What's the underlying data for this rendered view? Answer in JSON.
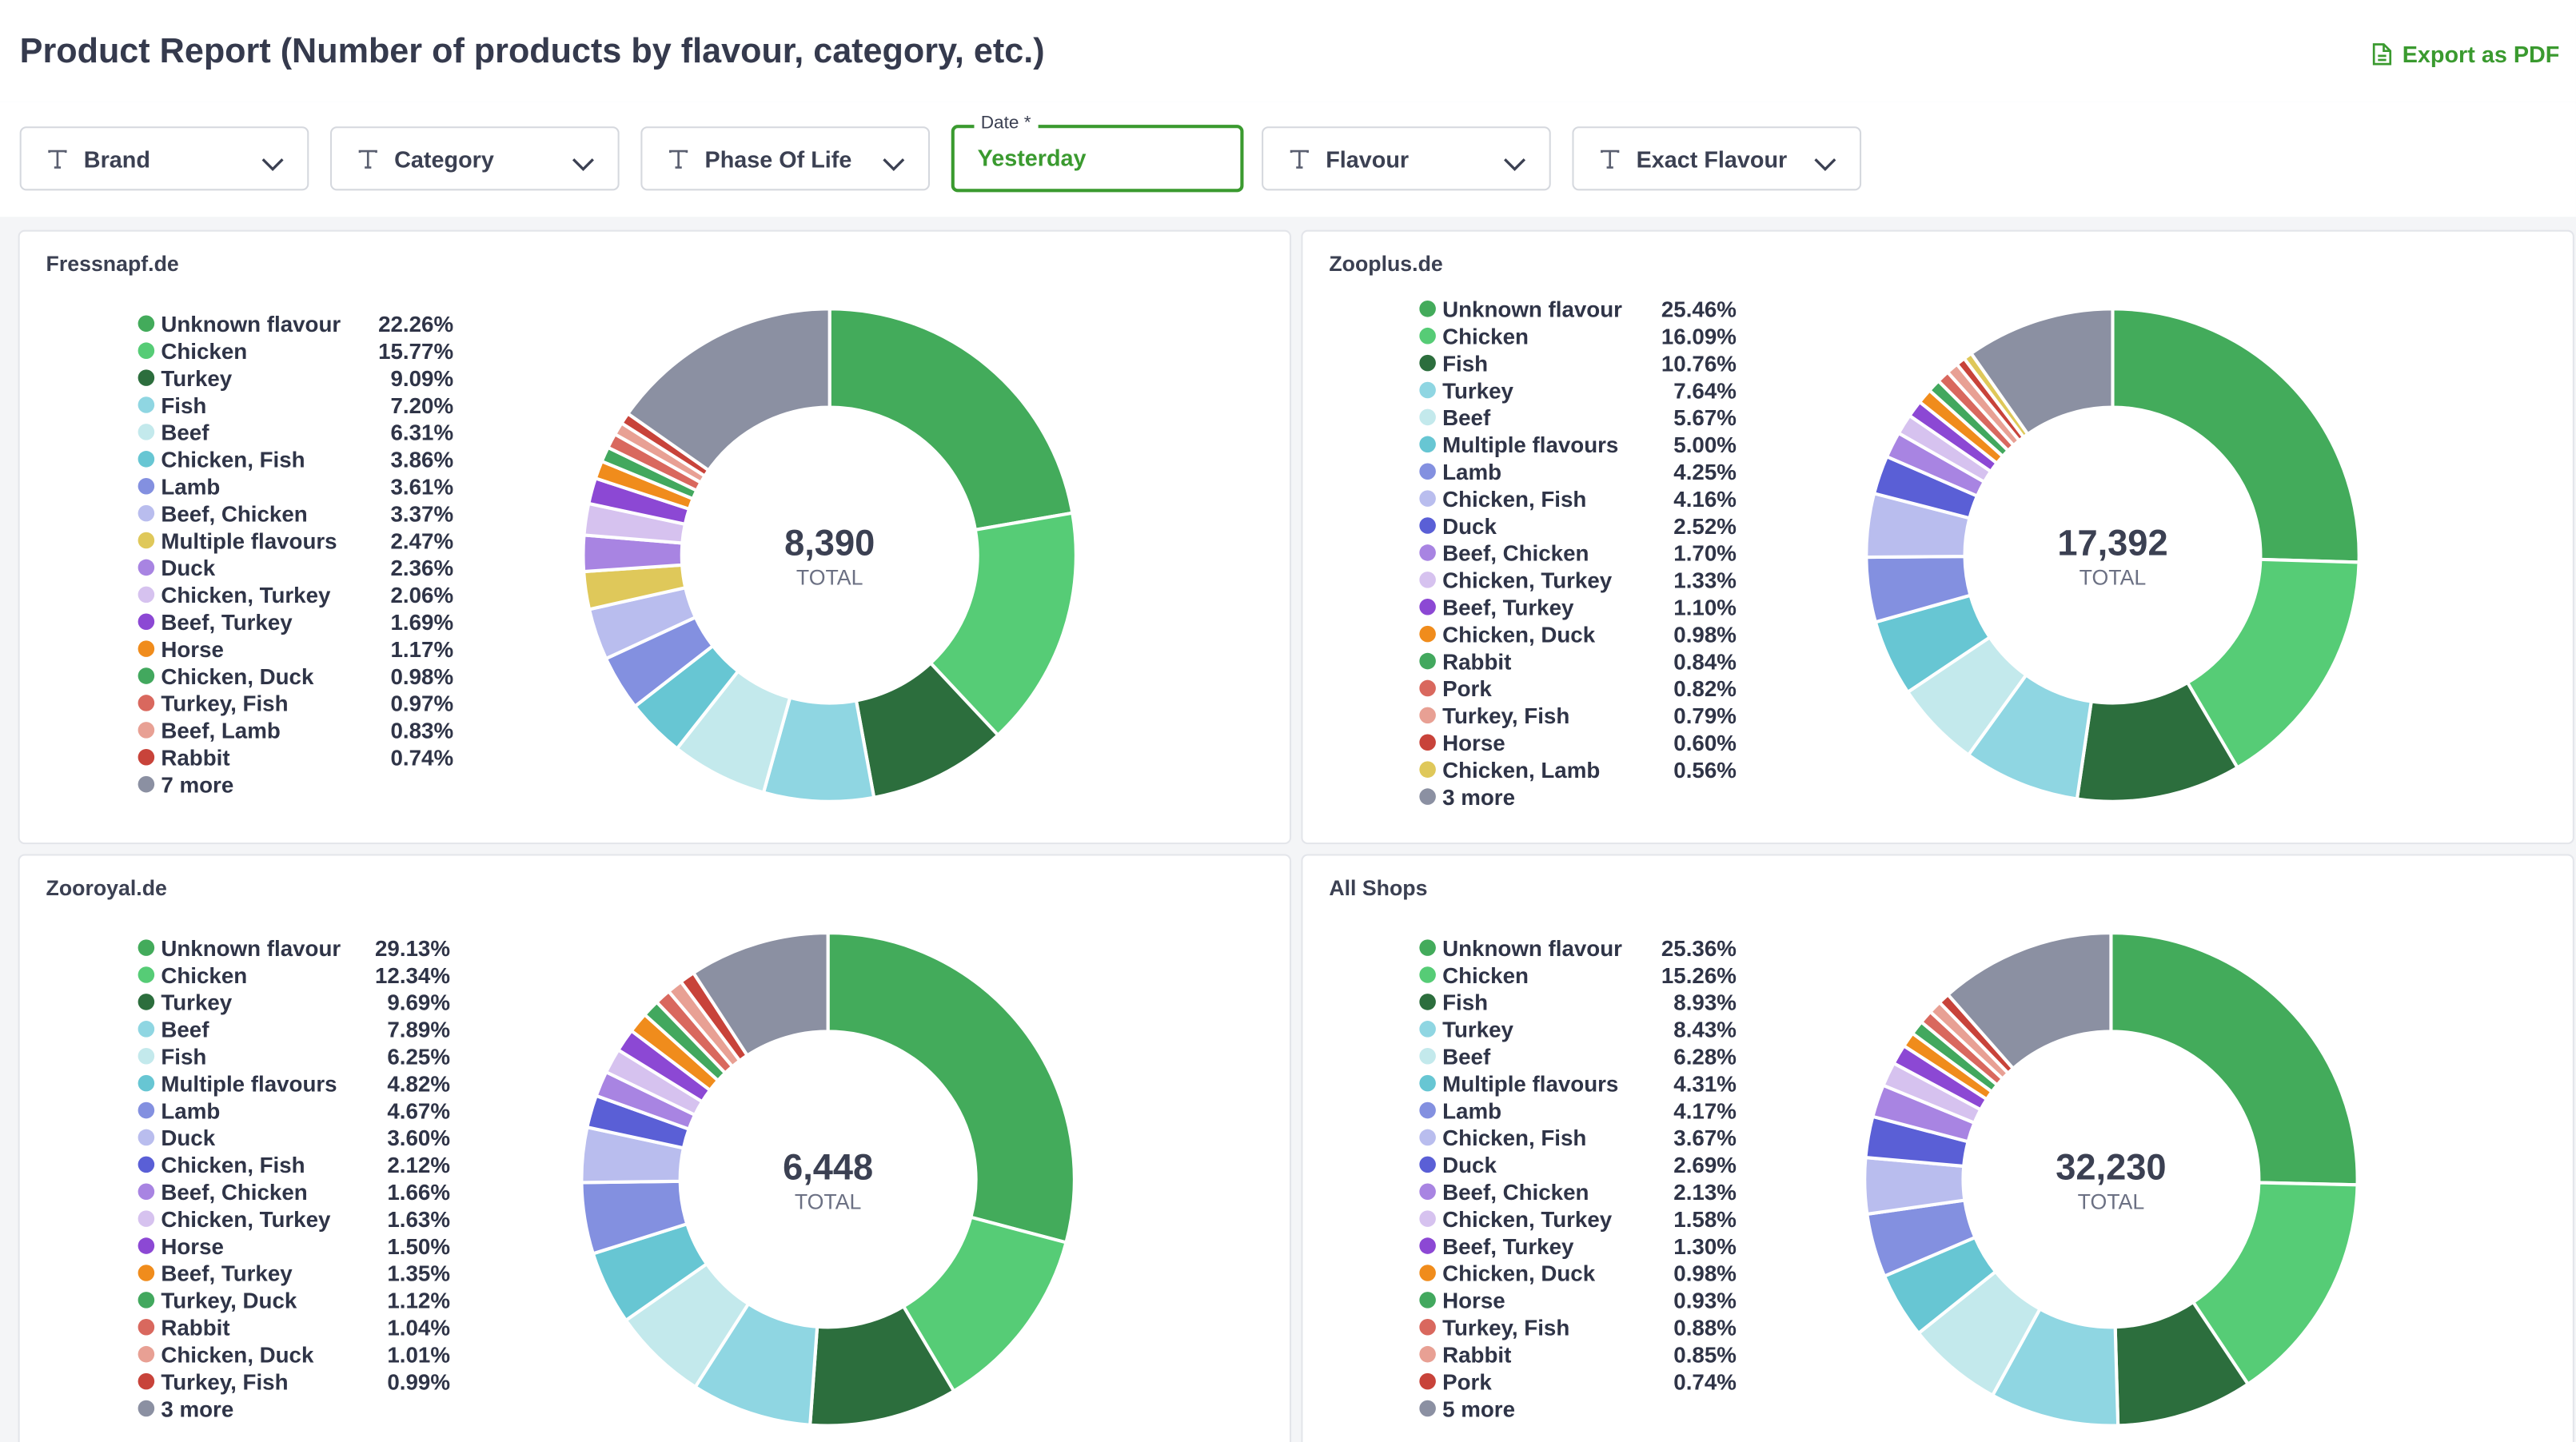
{
  "header": {
    "title": "Product Report (Number of products by flavour, category, etc.)",
    "export": "Export as PDF"
  },
  "filters": [
    {
      "label": "Brand"
    },
    {
      "label": "Category"
    },
    {
      "label": "Phase Of Life"
    },
    {
      "label": "Date *",
      "value": "Yesterday"
    },
    {
      "label": "Flavour"
    },
    {
      "label": "Exact Flavour"
    }
  ],
  "chart_data": [
    {
      "type": "pie",
      "title": "Fressnapf.de",
      "categories": [
        "Unknown flavour",
        "Chicken",
        "Turkey",
        "Fish",
        "Beef",
        "Chicken, Fish",
        "Lamb",
        "Beef, Chicken",
        "Multiple flavours",
        "Duck",
        "Chicken, Turkey",
        "Beef, Turkey",
        "Horse",
        "Chicken, Duck",
        "Turkey, Fish",
        "Beef, Lamb",
        "Rabbit",
        "7 more"
      ],
      "values": [
        22.26,
        15.77,
        9.09,
        7.2,
        6.31,
        3.86,
        3.61,
        3.37,
        2.47,
        2.36,
        2.06,
        1.69,
        1.17,
        0.98,
        0.97,
        0.83,
        0.74,
        15.26
      ],
      "value_labels": [
        "22.26%",
        "15.77%",
        "9.09%",
        "7.20%",
        "6.31%",
        "3.86%",
        "3.61%",
        "3.37%",
        "2.47%",
        "2.36%",
        "2.06%",
        "1.69%",
        "1.17%",
        "0.98%",
        "0.97%",
        "0.83%",
        "0.74%",
        null
      ],
      "colors": [
        "#43ab5b",
        "#56cc76",
        "#2c6e3d",
        "#8fd6e2",
        "#c3e9ec",
        "#67c6d3",
        "#8390e0",
        "#b9bdee",
        "#dfc85a",
        "#a884e2",
        "#d6c2ef",
        "#8c48d4",
        "#f08c1c",
        "#42a85e",
        "#d9685e",
        "#e8a094",
        "#c8433a",
        "#8b90a2"
      ],
      "total": {
        "value": 8390,
        "label": "8,390"
      },
      "total_label": "TOTAL"
    },
    {
      "type": "pie",
      "title": "Zooplus.de",
      "categories": [
        "Unknown flavour",
        "Chicken",
        "Fish",
        "Turkey",
        "Beef",
        "Multiple flavours",
        "Lamb",
        "Chicken, Fish",
        "Duck",
        "Beef, Chicken",
        "Chicken, Turkey",
        "Beef, Turkey",
        "Chicken, Duck",
        "Rabbit",
        "Pork",
        "Turkey, Fish",
        "Horse",
        "Chicken, Lamb",
        "3 more"
      ],
      "values": [
        25.46,
        16.09,
        10.76,
        7.64,
        5.67,
        5.0,
        4.25,
        4.16,
        2.52,
        1.7,
        1.33,
        1.1,
        0.98,
        0.84,
        0.82,
        0.79,
        0.6,
        0.56,
        9.73
      ],
      "value_labels": [
        "25.46%",
        "16.09%",
        "10.76%",
        "7.64%",
        "5.67%",
        "5.00%",
        "4.25%",
        "4.16%",
        "2.52%",
        "1.70%",
        "1.33%",
        "1.10%",
        "0.98%",
        "0.84%",
        "0.82%",
        "0.79%",
        "0.60%",
        "0.56%",
        null
      ],
      "colors": [
        "#43ab5b",
        "#56cc76",
        "#2c6e3d",
        "#8fd6e2",
        "#c3e9ec",
        "#67c6d3",
        "#8390e0",
        "#b9bdee",
        "#5a5fd6",
        "#a884e2",
        "#d6c2ef",
        "#8c48d4",
        "#f08c1c",
        "#42a85e",
        "#d9685e",
        "#e8a094",
        "#c8433a",
        "#dfc85a",
        "#8b90a2"
      ],
      "total": {
        "value": 17392,
        "label": "17,392"
      },
      "total_label": "TOTAL"
    },
    {
      "type": "pie",
      "title": "Zooroyal.de",
      "categories": [
        "Unknown flavour",
        "Chicken",
        "Turkey",
        "Beef",
        "Fish",
        "Multiple flavours",
        "Lamb",
        "Duck",
        "Chicken, Fish",
        "Beef, Chicken",
        "Chicken, Turkey",
        "Horse",
        "Beef, Turkey",
        "Turkey, Duck",
        "Rabbit",
        "Chicken, Duck",
        "Turkey, Fish",
        "3 more"
      ],
      "values": [
        29.13,
        12.34,
        9.69,
        7.89,
        6.25,
        4.82,
        4.67,
        3.6,
        2.12,
        1.66,
        1.63,
        1.5,
        1.35,
        1.12,
        1.04,
        1.01,
        0.99,
        9.19
      ],
      "value_labels": [
        "29.13%",
        "12.34%",
        "9.69%",
        "7.89%",
        "6.25%",
        "4.82%",
        "4.67%",
        "3.60%",
        "2.12%",
        "1.66%",
        "1.63%",
        "1.50%",
        "1.35%",
        "1.12%",
        "1.04%",
        "1.01%",
        "0.99%",
        null
      ],
      "colors": [
        "#43ab5b",
        "#56cc76",
        "#2c6e3d",
        "#8fd6e2",
        "#c3e9ec",
        "#67c6d3",
        "#8390e0",
        "#b9bdee",
        "#5a5fd6",
        "#a884e2",
        "#d6c2ef",
        "#8c48d4",
        "#f08c1c",
        "#42a85e",
        "#d9685e",
        "#e8a094",
        "#c8433a",
        "#8b90a2"
      ],
      "total": {
        "value": 6448,
        "label": "6,448"
      },
      "total_label": "TOTAL"
    },
    {
      "type": "pie",
      "title": "All Shops",
      "categories": [
        "Unknown flavour",
        "Chicken",
        "Fish",
        "Turkey",
        "Beef",
        "Multiple flavours",
        "Lamb",
        "Chicken, Fish",
        "Duck",
        "Beef, Chicken",
        "Chicken, Turkey",
        "Beef, Turkey",
        "Chicken, Duck",
        "Horse",
        "Turkey, Fish",
        "Rabbit",
        "Pork",
        "5 more"
      ],
      "values": [
        25.36,
        15.26,
        8.93,
        8.43,
        6.28,
        4.31,
        4.17,
        3.67,
        2.69,
        2.13,
        1.58,
        1.3,
        0.98,
        0.93,
        0.88,
        0.85,
        0.74,
        11.51
      ],
      "value_labels": [
        "25.36%",
        "15.26%",
        "8.93%",
        "8.43%",
        "6.28%",
        "4.31%",
        "4.17%",
        "3.67%",
        "2.69%",
        "2.13%",
        "1.58%",
        "1.30%",
        "0.98%",
        "0.93%",
        "0.88%",
        "0.85%",
        "0.74%",
        null
      ],
      "colors": [
        "#43ab5b",
        "#56cc76",
        "#2c6e3d",
        "#8fd6e2",
        "#c3e9ec",
        "#67c6d3",
        "#8390e0",
        "#b9bdee",
        "#5a5fd6",
        "#a884e2",
        "#d6c2ef",
        "#8c48d4",
        "#f08c1c",
        "#42a85e",
        "#d9685e",
        "#e8a094",
        "#c8433a",
        "#8b90a2"
      ],
      "total": {
        "value": 32230,
        "label": "32,230"
      },
      "total_label": "TOTAL"
    }
  ]
}
